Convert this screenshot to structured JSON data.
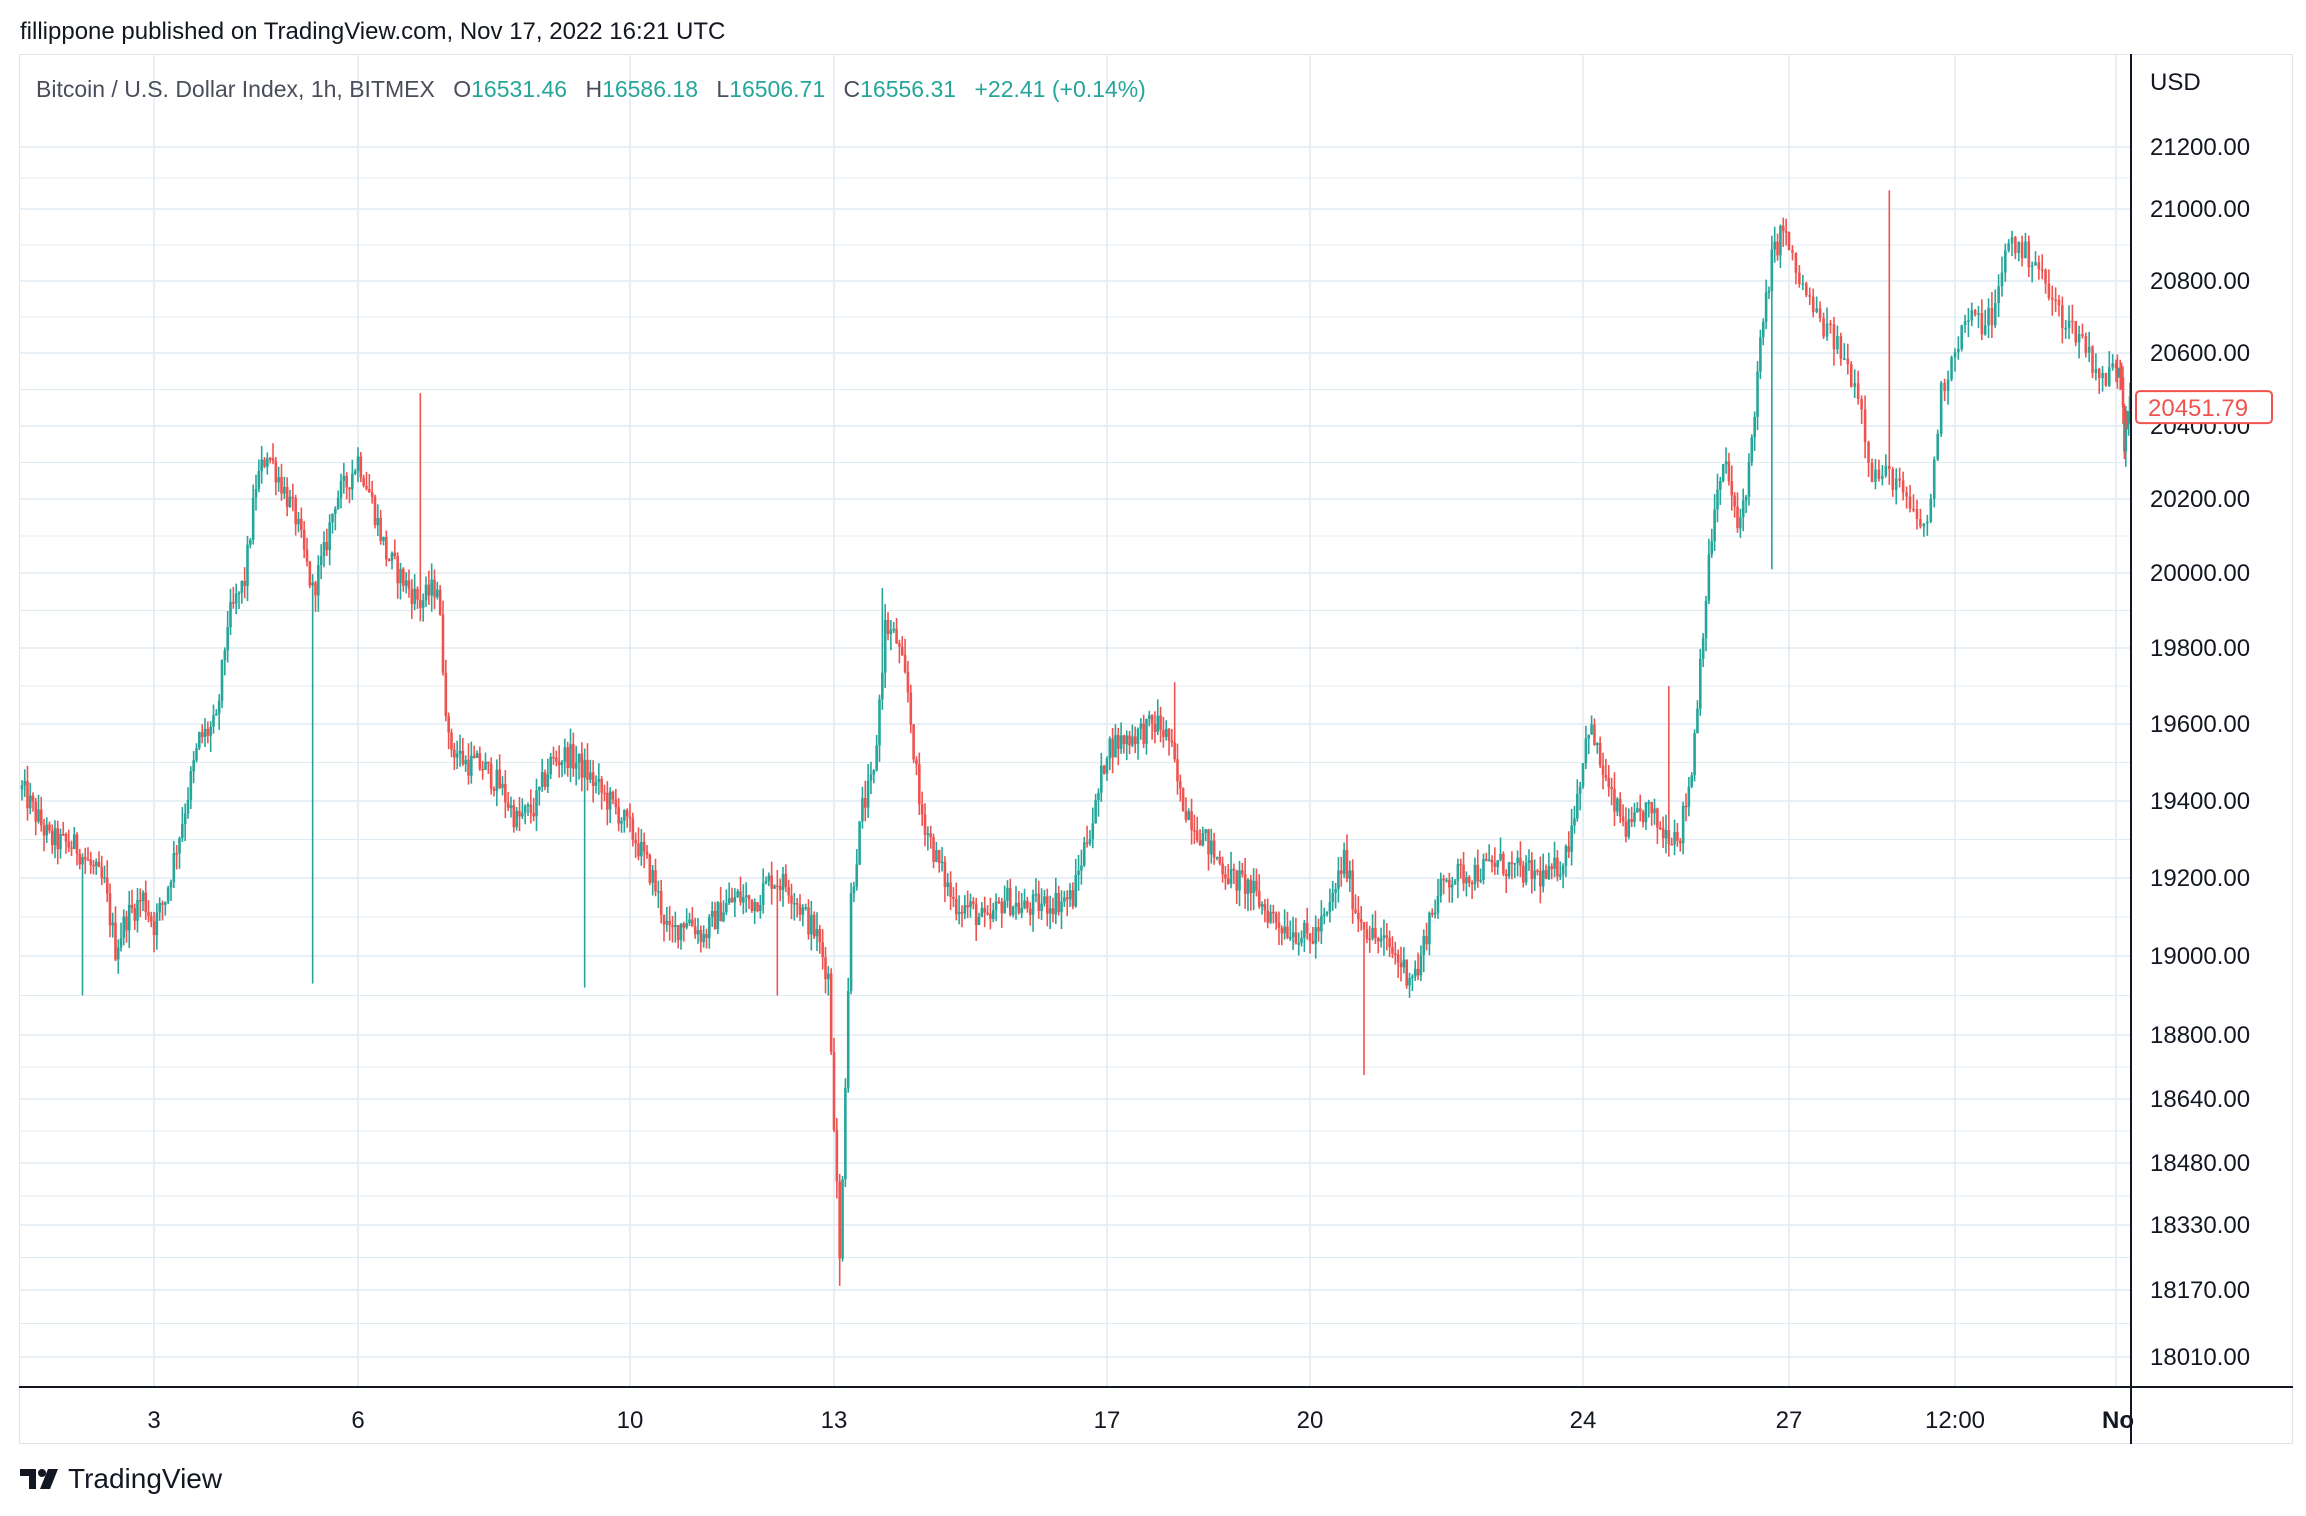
{
  "header": {
    "published": "fillippone published on TradingView.com, Nov 17, 2022 16:21 UTC"
  },
  "legend": {
    "symbol": "Bitcoin / U.S. Dollar Index, 1h, BITMEX",
    "o_label": "O",
    "o_value": "16531.46",
    "h_label": "H",
    "h_value": "16586.18",
    "l_label": "L",
    "l_value": "16506.71",
    "c_label": "C",
    "c_value": "16556.31",
    "change": "+22.41 (+0.14%)"
  },
  "footer": {
    "brand": "TradingView"
  },
  "colors": {
    "up": "#26a69a",
    "down": "#ef5350",
    "grid": "#e0ecf3",
    "axis": "#131722",
    "last_price": "#ef5350"
  },
  "chart_data": {
    "type": "candlestick",
    "interval": "1h",
    "currency": "USD",
    "y_ticks": [
      21200,
      21000,
      20800,
      20600,
      20400,
      20200,
      20000,
      19800,
      19600,
      19400,
      19200,
      19000,
      18800,
      18640,
      18480,
      18330,
      18170,
      18010
    ],
    "y_tick_labels": [
      "21200.00",
      "21000.00",
      "20800.00",
      "20600.00",
      "20400.00",
      "20200.00",
      "20000.00",
      "19800.00",
      "19600.00",
      "19400.00",
      "19200.00",
      "19000.00",
      "18800.00",
      "18640.00",
      "18480.00",
      "18330.00",
      "18170.00",
      "18010.00"
    ],
    "x_tick_labels": [
      "3",
      "6",
      "10",
      "13",
      "17",
      "20",
      "24",
      "27",
      "12:00",
      "No"
    ],
    "x_tick_hours": [
      48,
      120,
      216,
      288,
      384,
      456,
      552,
      624,
      672,
      720
    ],
    "last_price": 20451.79,
    "last_price_label": "20451.79",
    "hours_total": 730,
    "path": [
      [
        0,
        19430
      ],
      [
        10,
        19300
      ],
      [
        20,
        19280
      ],
      [
        30,
        19180
      ],
      [
        34,
        19020
      ],
      [
        38,
        19100
      ],
      [
        44,
        19150
      ],
      [
        48,
        19080
      ],
      [
        52,
        19150
      ],
      [
        58,
        19350
      ],
      [
        64,
        19560
      ],
      [
        70,
        19600
      ],
      [
        74,
        19870
      ],
      [
        80,
        19980
      ],
      [
        84,
        20240
      ],
      [
        88,
        20330
      ],
      [
        92,
        20260
      ],
      [
        98,
        20150
      ],
      [
        104,
        19950
      ],
      [
        108,
        20050
      ],
      [
        112,
        20200
      ],
      [
        116,
        20240
      ],
      [
        120,
        20310
      ],
      [
        124,
        20220
      ],
      [
        130,
        20050
      ],
      [
        136,
        19980
      ],
      [
        142,
        19920
      ],
      [
        148,
        19970
      ],
      [
        152,
        19550
      ],
      [
        158,
        19500
      ],
      [
        164,
        19490
      ],
      [
        170,
        19440
      ],
      [
        176,
        19350
      ],
      [
        182,
        19380
      ],
      [
        188,
        19500
      ],
      [
        194,
        19520
      ],
      [
        200,
        19480
      ],
      [
        206,
        19420
      ],
      [
        212,
        19370
      ],
      [
        218,
        19300
      ],
      [
        224,
        19200
      ],
      [
        230,
        19050
      ],
      [
        236,
        19100
      ],
      [
        242,
        19050
      ],
      [
        248,
        19120
      ],
      [
        254,
        19150
      ],
      [
        260,
        19140
      ],
      [
        266,
        19200
      ],
      [
        272,
        19180
      ],
      [
        278,
        19100
      ],
      [
        282,
        19050
      ],
      [
        286,
        18950
      ],
      [
        290,
        18240
      ],
      [
        294,
        19150
      ],
      [
        298,
        19380
      ],
      [
        302,
        19460
      ],
      [
        306,
        19860
      ],
      [
        310,
        19820
      ],
      [
        314,
        19680
      ],
      [
        318,
        19390
      ],
      [
        324,
        19250
      ],
      [
        330,
        19140
      ],
      [
        336,
        19120
      ],
      [
        342,
        19080
      ],
      [
        348,
        19150
      ],
      [
        354,
        19120
      ],
      [
        360,
        19130
      ],
      [
        366,
        19140
      ],
      [
        372,
        19150
      ],
      [
        376,
        19280
      ],
      [
        380,
        19380
      ],
      [
        384,
        19540
      ],
      [
        390,
        19560
      ],
      [
        396,
        19580
      ],
      [
        402,
        19600
      ],
      [
        406,
        19560
      ],
      [
        410,
        19410
      ],
      [
        416,
        19330
      ],
      [
        422,
        19260
      ],
      [
        428,
        19200
      ],
      [
        434,
        19180
      ],
      [
        440,
        19120
      ],
      [
        446,
        19080
      ],
      [
        452,
        19060
      ],
      [
        456,
        19040
      ],
      [
        462,
        19100
      ],
      [
        468,
        19250
      ],
      [
        472,
        19120
      ],
      [
        478,
        19050
      ],
      [
        484,
        19020
      ],
      [
        490,
        18960
      ],
      [
        494,
        18960
      ],
      [
        498,
        19100
      ],
      [
        504,
        19200
      ],
      [
        510,
        19210
      ],
      [
        516,
        19220
      ],
      [
        522,
        19240
      ],
      [
        528,
        19220
      ],
      [
        534,
        19210
      ],
      [
        540,
        19200
      ],
      [
        546,
        19260
      ],
      [
        550,
        19420
      ],
      [
        554,
        19600
      ],
      [
        558,
        19500
      ],
      [
        562,
        19400
      ],
      [
        568,
        19320
      ],
      [
        574,
        19380
      ],
      [
        580,
        19320
      ],
      [
        586,
        19320
      ],
      [
        590,
        19480
      ],
      [
        594,
        19860
      ],
      [
        598,
        20180
      ],
      [
        602,
        20300
      ],
      [
        606,
        20110
      ],
      [
        610,
        20280
      ],
      [
        614,
        20620
      ],
      [
        618,
        20860
      ],
      [
        622,
        20950
      ],
      [
        626,
        20820
      ],
      [
        632,
        20700
      ],
      [
        638,
        20620
      ],
      [
        644,
        20500
      ],
      [
        648,
        20270
      ],
      [
        654,
        20260
      ],
      [
        660,
        20150
      ],
      [
        664,
        20120
      ],
      [
        668,
        20490
      ],
      [
        672,
        20620
      ],
      [
        676,
        20700
      ],
      [
        680,
        20680
      ],
      [
        684,
        20720
      ],
      [
        688,
        20920
      ],
      [
        692,
        20880
      ],
      [
        696,
        20860
      ],
      [
        700,
        20760
      ],
      [
        704,
        20700
      ],
      [
        710,
        20640
      ],
      [
        716,
        20520
      ],
      [
        720,
        20570
      ],
      [
        724,
        20560
      ],
      [
        726,
        20360
      ],
      [
        730,
        20450
      ]
    ],
    "spikes": [
      [
        290,
        18180
      ],
      [
        475,
        18700
      ],
      [
        305,
        19960
      ],
      [
        408,
        19710
      ],
      [
        618,
        20010
      ],
      [
        653,
        21060
      ],
      [
        582,
        19700
      ],
      [
        142,
        20490
      ],
      [
        22,
        18900
      ],
      [
        104,
        18930
      ],
      [
        268,
        18900
      ],
      [
        200,
        18920
      ]
    ]
  }
}
